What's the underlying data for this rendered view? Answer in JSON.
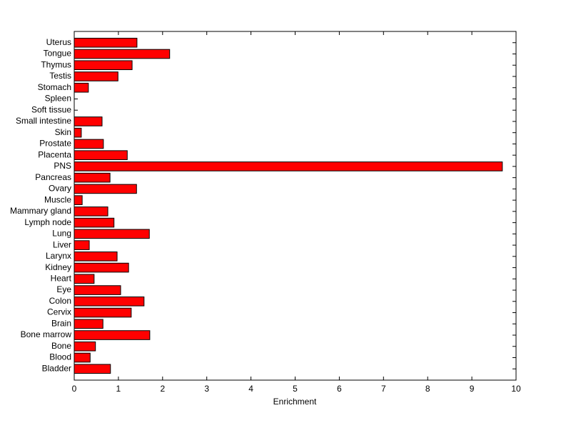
{
  "chart_data": {
    "type": "barh",
    "xlabel": "Enrichment",
    "categories": [
      "Bladder",
      "Blood",
      "Bone",
      "Bone marrow",
      "Brain",
      "Cervix",
      "Colon",
      "Eye",
      "Heart",
      "Kidney",
      "Larynx",
      "Liver",
      "Lung",
      "Lymph node",
      "Mammary gland",
      "Muscle",
      "Ovary",
      "Pancreas",
      "PNS",
      "Placenta",
      "Prostate",
      "Skin",
      "Small intestine",
      "Soft tissue",
      "Spleen",
      "Stomach",
      "Testis",
      "Thymus",
      "Tongue",
      "Uterus"
    ],
    "values": [
      0.82,
      0.36,
      0.48,
      1.71,
      0.65,
      1.29,
      1.58,
      1.05,
      0.45,
      1.23,
      0.97,
      0.34,
      1.7,
      0.9,
      0.76,
      0.18,
      1.41,
      0.81,
      9.69,
      1.2,
      0.66,
      0.16,
      0.63,
      0,
      0,
      0.32,
      0.99,
      1.31,
      2.16,
      1.42
    ],
    "color": "#ff0000",
    "xlim": [
      0,
      10
    ],
    "xticks": [
      0,
      1,
      2,
      3,
      4,
      5,
      6,
      7,
      8,
      9,
      10
    ]
  }
}
